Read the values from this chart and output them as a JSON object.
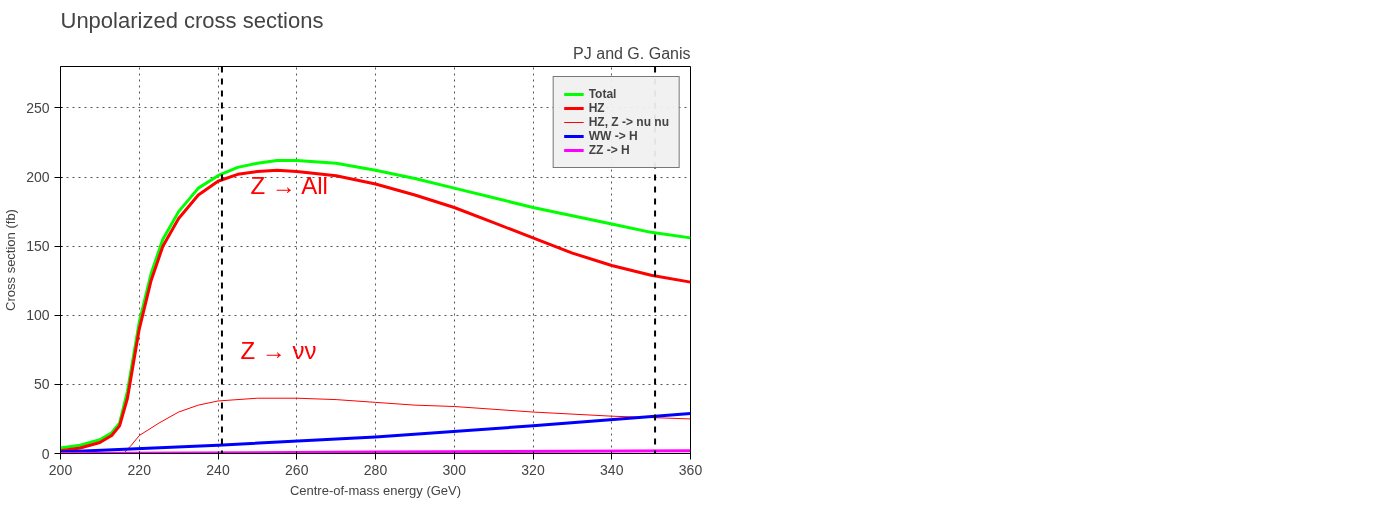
{
  "chart_data": {
    "type": "line",
    "title": "Unpolarized cross sections",
    "xlabel": "Centre-of-mass energy (GeV)",
    "ylabel": "Cross section (fb)",
    "xlim": [
      200,
      360
    ],
    "ylim": [
      0,
      280
    ],
    "xticks": [
      200,
      220,
      240,
      260,
      280,
      300,
      320,
      340,
      360
    ],
    "yticks": [
      0,
      50,
      100,
      150,
      200,
      250
    ],
    "grid": true,
    "legend": "top right",
    "x": [
      200,
      205,
      210,
      213,
      215,
      217,
      220,
      223,
      226,
      230,
      235,
      240,
      245,
      250,
      255,
      260,
      270,
      280,
      290,
      300,
      310,
      320,
      330,
      340,
      350,
      360
    ],
    "series": [
      {
        "name": "Total",
        "color": "#00ff00",
        "values": [
          4,
          6,
          10,
          15,
          22,
          45,
          95,
          130,
          155,
          175,
          192,
          201,
          207,
          210,
          212,
          212,
          210,
          205,
          199,
          192,
          185,
          178,
          172,
          166,
          160,
          156
        ]
      },
      {
        "name": "HZ",
        "color": "#ff0000",
        "values": [
          2,
          4,
          8,
          13,
          20,
          40,
          90,
          125,
          150,
          170,
          187,
          197,
          202,
          204,
          205,
          204,
          201,
          195,
          187,
          178,
          167,
          156,
          145,
          136,
          129,
          124
        ]
      },
      {
        "name": "HZ, Z -> nu nu",
        "color": "#ff0000",
        "x": [
          216,
          218,
          220,
          225,
          230,
          235,
          240,
          250,
          260,
          270,
          280,
          290,
          300,
          320,
          340,
          360
        ],
        "values": [
          0,
          6,
          13,
          22,
          30,
          35,
          38,
          40,
          40,
          39,
          37,
          35,
          34,
          30,
          27,
          25
        ]
      },
      {
        "name": "WW -> H",
        "color": "#0000ff",
        "x": [
          200,
          240,
          280,
          320,
          360
        ],
        "values": [
          1,
          6,
          12,
          20,
          29
        ]
      },
      {
        "name": "ZZ -> H",
        "color": "#ff00ff",
        "x": [
          200,
          280,
          360
        ],
        "values": [
          0,
          1,
          2
        ]
      }
    ],
    "ref_lines": [
      {
        "axis": "x",
        "value": 241,
        "label": null,
        "color": "#000000",
        "line_style": "dashed"
      },
      {
        "axis": "x",
        "value": 351,
        "label": null,
        "color": "#000000",
        "line_style": "dashed"
      }
    ],
    "annotations": [
      "Z → All",
      "Z → νν",
      "PJ and G. Ganis"
    ]
  }
}
